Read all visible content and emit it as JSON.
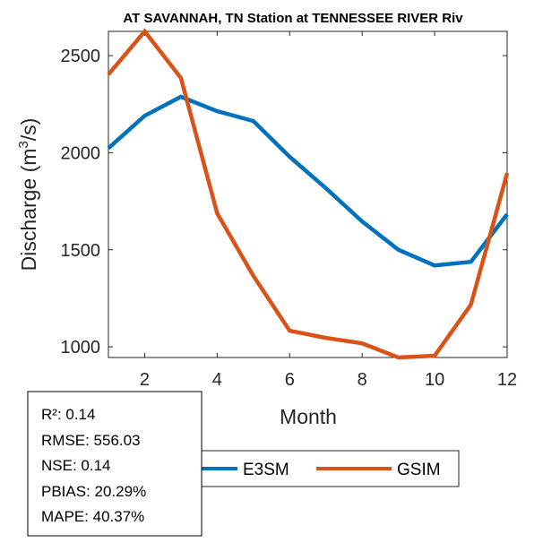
{
  "chart_data": {
    "type": "line",
    "title": "AT SAVANNAH, TN  Station at  TENNESSEE RIVER  Riv",
    "xlabel": "Month",
    "ylabel": "Discharge (m³/s)",
    "ylabel_parts": {
      "prefix": "Discharge (m",
      "sup": "3",
      "suffix": "/s)"
    },
    "xlim": [
      1,
      12
    ],
    "ylim": [
      945,
      2625
    ],
    "xticks": [
      2,
      4,
      6,
      8,
      10,
      12
    ],
    "xtick_labels": [
      "2",
      "4",
      "6",
      "8",
      "10",
      "12"
    ],
    "yticks": [
      1000,
      1500,
      2000,
      2500
    ],
    "ytick_labels": [
      "1000",
      "1500",
      "2000",
      "2500"
    ],
    "grid": false,
    "x": [
      1,
      2,
      3,
      4,
      5,
      6,
      7,
      8,
      9,
      10,
      11,
      12
    ],
    "series": [
      {
        "name": "E3SM",
        "color": "#0072BD",
        "values": [
          2023,
          2190,
          2288,
          2214,
          2163,
          1979,
          1817,
          1646,
          1500,
          1419,
          1438,
          1683
        ]
      },
      {
        "name": "GSIM",
        "color": "#D95319",
        "values": [
          2403,
          2625,
          2385,
          1688,
          1365,
          1083,
          1046,
          1018,
          945,
          954,
          1217,
          1895
        ]
      }
    ],
    "legend": {
      "entries": [
        "E3SM",
        "GSIM"
      ],
      "placement": "bottom-center",
      "orientation": "horizontal"
    },
    "annotation": {
      "placement": "bottom-left",
      "lines": [
        "R²: 0.14",
        "RMSE: 556.03",
        "NSE: 0.14",
        "PBIAS: 20.29%",
        "MAPE: 40.37%"
      ]
    }
  }
}
